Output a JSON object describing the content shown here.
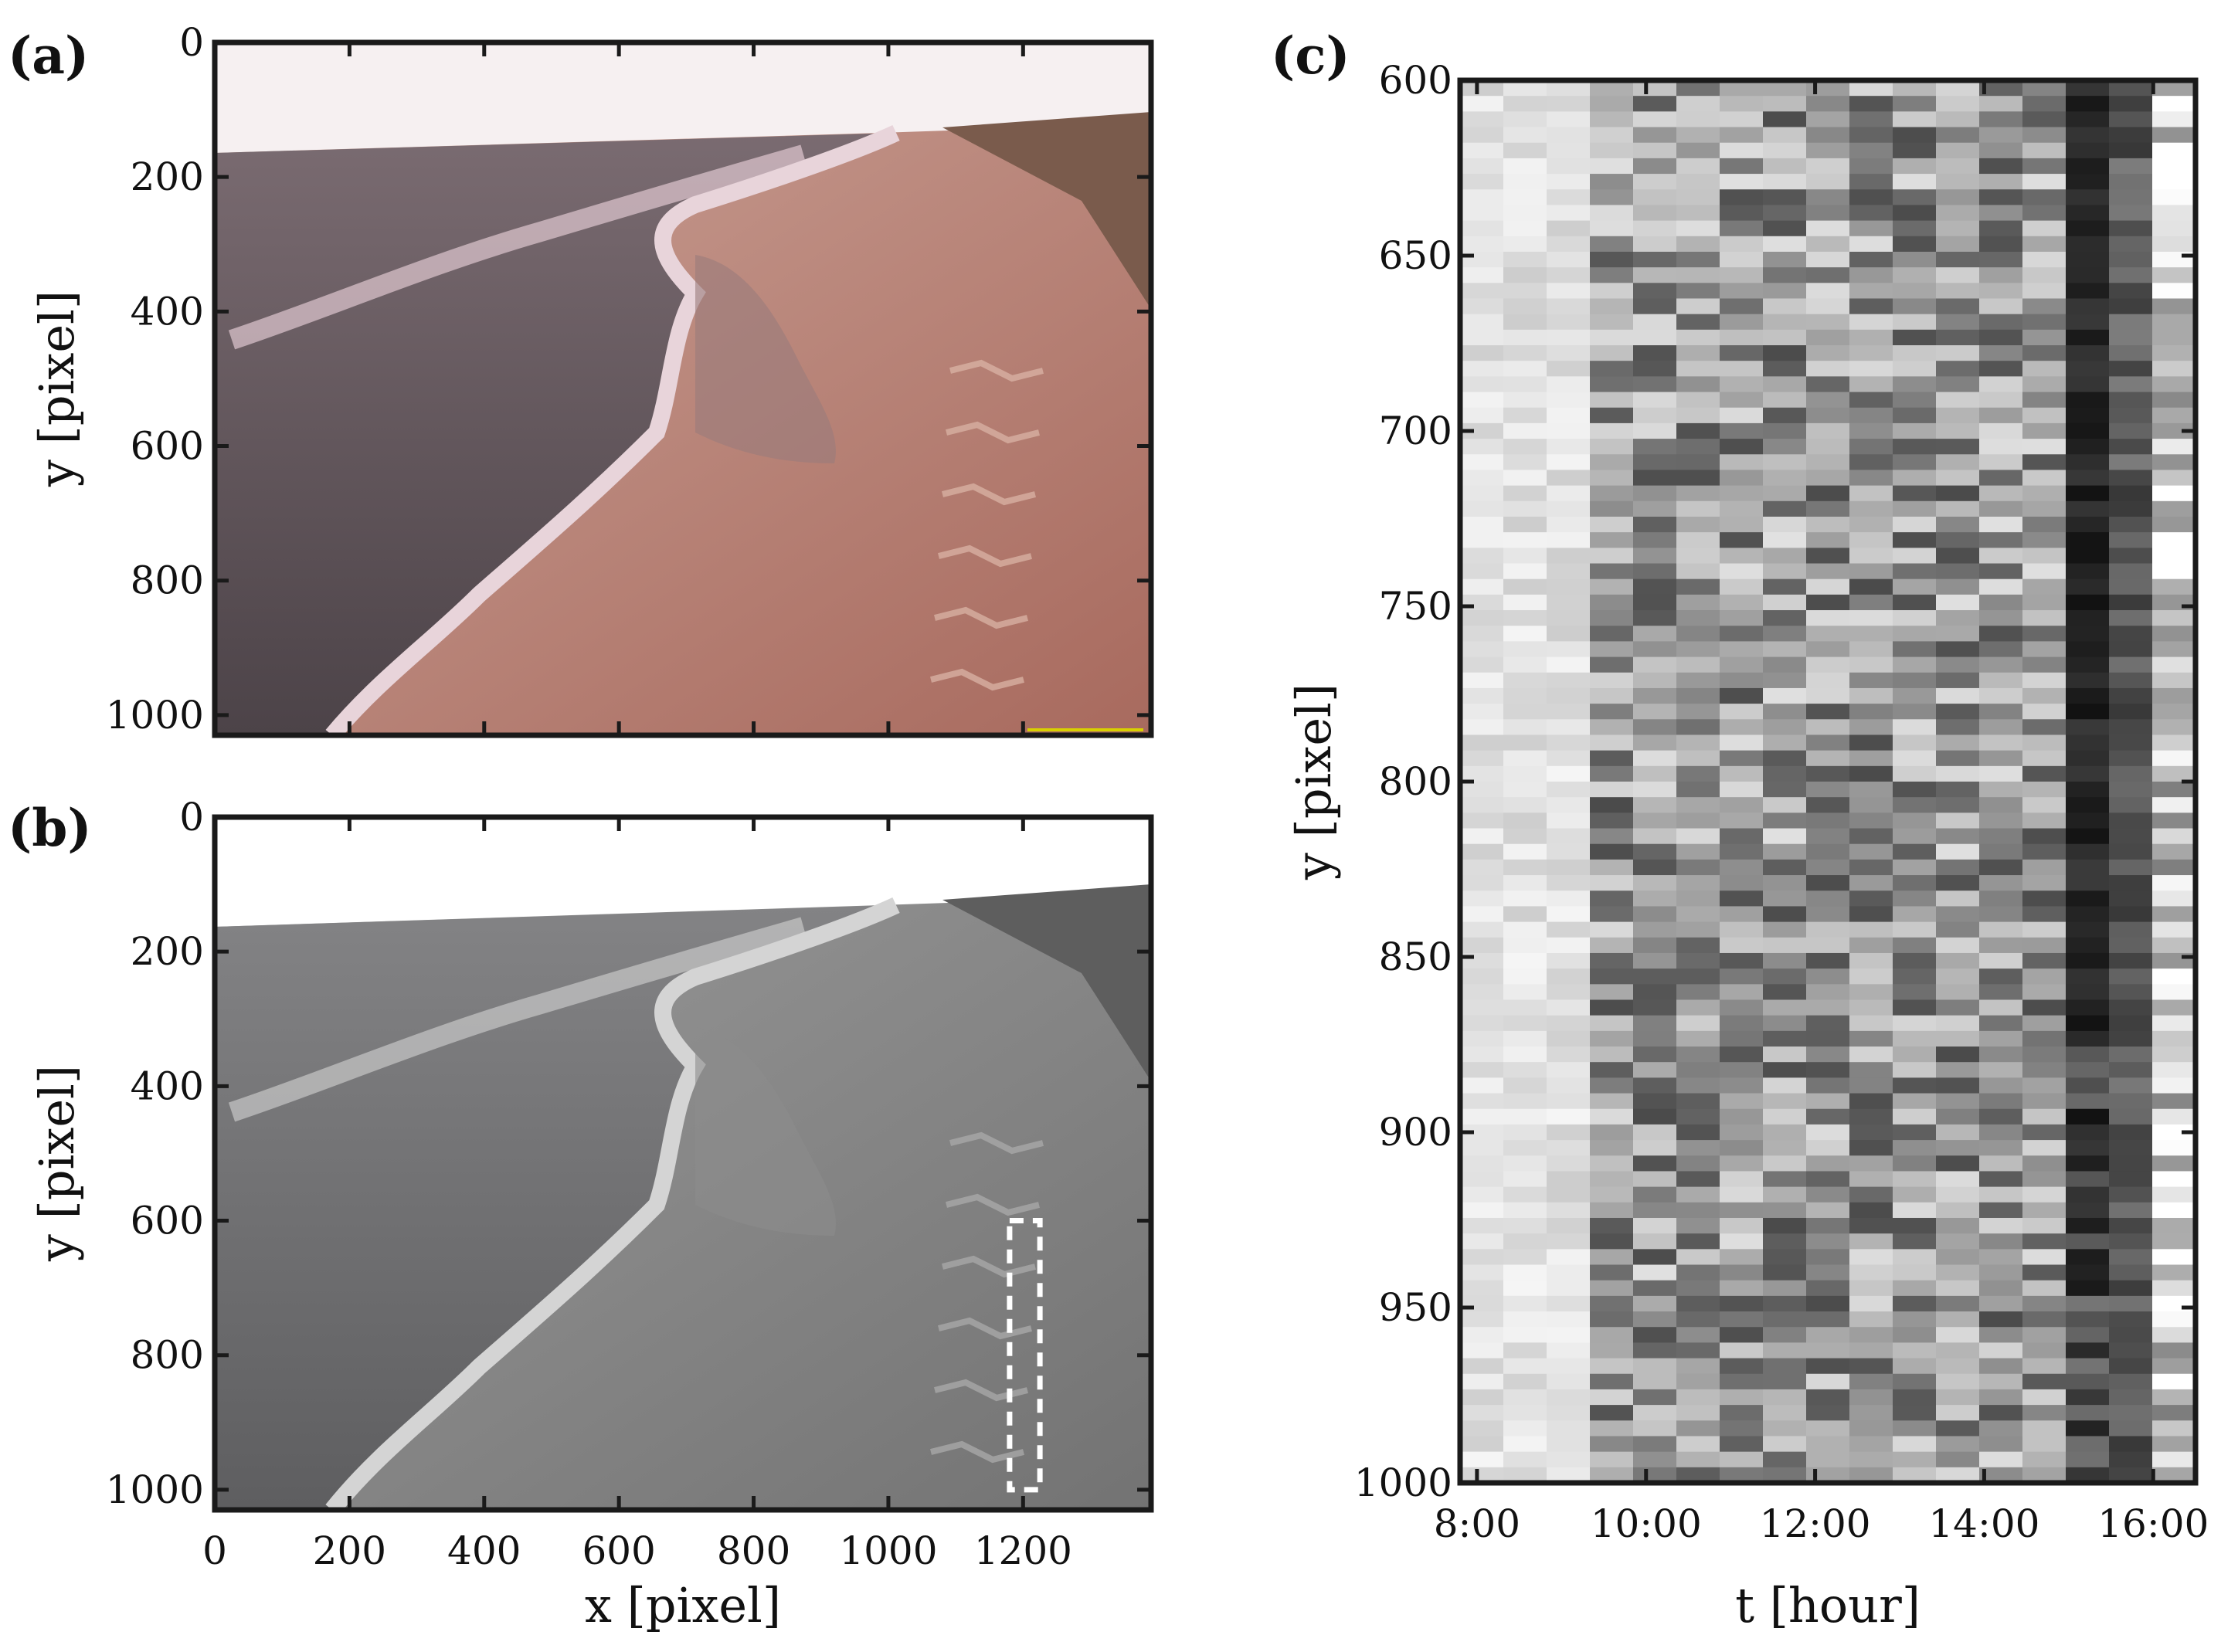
{
  "panels": {
    "a": {
      "label": "(a)",
      "ylabel": "y [pixel]",
      "yticks": [
        "0",
        "200",
        "400",
        "600",
        "800",
        "1000"
      ],
      "ylim": [
        0,
        1030
      ],
      "xlim": [
        0,
        1390
      ]
    },
    "b": {
      "label": "(b)",
      "ylabel": "y [pixel]",
      "xlabel": "x [pixel]",
      "yticks": [
        "0",
        "200",
        "400",
        "600",
        "800",
        "1000"
      ],
      "xticks": [
        "0",
        "200",
        "400",
        "600",
        "800",
        "1000",
        "1200"
      ],
      "ylim": [
        0,
        1030
      ],
      "xlim": [
        0,
        1390
      ],
      "roi": {
        "x0": 1180,
        "x1": 1225,
        "y0": 600,
        "y1": 1000
      }
    },
    "c": {
      "label": "(c)",
      "ylabel": "y [pixel]",
      "xlabel": "t [hour]",
      "yticks": [
        "600",
        "650",
        "700",
        "750",
        "800",
        "850",
        "900",
        "950",
        "1000"
      ],
      "xticks": [
        "8:00",
        "10:00",
        "12:00",
        "14:00",
        "16:00"
      ],
      "ylim": [
        600,
        1000
      ],
      "xlim": [
        7.8,
        16.5
      ]
    }
  },
  "colors": {
    "sky": "#f6f0f1",
    "sea_a": "#5d5359",
    "surf_a": "#d8bfc8",
    "beach_a": "#b97a6e",
    "dune_a": "#7a5b4c",
    "sky_b": "#ffffff",
    "sea_b": "#6e6e70",
    "surf_b": "#bdbdbd",
    "beach_b": "#7d7d7d",
    "dune_b": "#5e5e5e",
    "roi": "#ffffff",
    "yellow_marker": "#d8d000"
  }
}
